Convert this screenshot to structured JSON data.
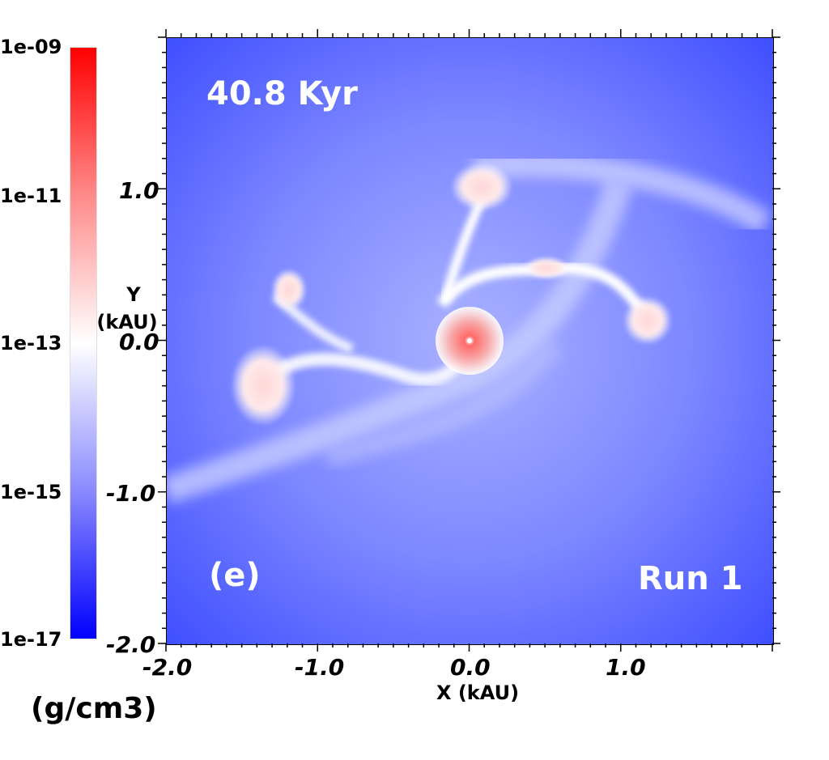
{
  "figure": {
    "time_label": "40.8 Kyr",
    "panel_label": "(e)",
    "run_label": "Run 1",
    "x_axis_title": "X (kAU)",
    "y_axis_title_line1": "Y",
    "y_axis_title_line2": "(kAU)",
    "x_ticks": [
      "-2.0",
      "-1.0",
      "0.0",
      "1.0"
    ],
    "y_ticks": [
      "1.0",
      "0.0",
      "-1.0",
      "-2.0"
    ]
  },
  "colorbar": {
    "labels": [
      "1e-09",
      "1e-11",
      "1e-13",
      "1e-15",
      "1e-17"
    ],
    "unit": "(g/cm3)",
    "colors": {
      "high": "#ff0000",
      "mid": "#ffffff",
      "low": "#0000ff"
    }
  }
}
